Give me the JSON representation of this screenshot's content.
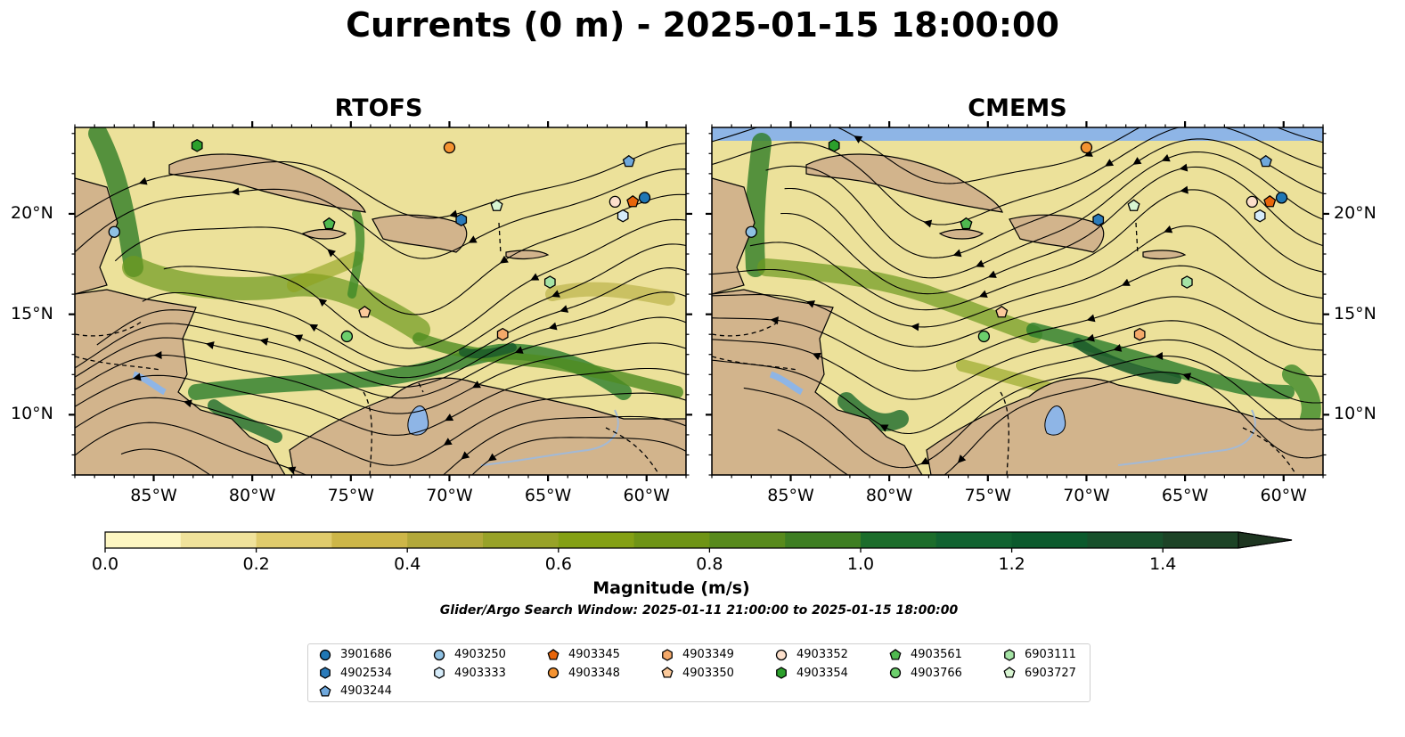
{
  "title": "Currents (0 m) - 2025-01-15 18:00:00",
  "panels": [
    {
      "title": "RTOFS"
    },
    {
      "title": "CMEMS"
    }
  ],
  "colorbar": {
    "label": "Magnitude (m/s)",
    "ticks": [
      "0.0",
      "0.2",
      "0.4",
      "0.6",
      "0.8",
      "1.0",
      "1.2",
      "1.4"
    ],
    "range": [
      0.0,
      1.5
    ],
    "extend": "max",
    "colors": [
      "#fdf6c2",
      "#f0e29b",
      "#e0cb6c",
      "#cdb648",
      "#b2a83a",
      "#98a228",
      "#84a014",
      "#6f9416",
      "#588a1c",
      "#3e7e22",
      "#1c6d2b",
      "#116331",
      "#0c5a2d",
      "#17502b",
      "#1c4326",
      "#1d3520"
    ]
  },
  "search_window": "Glider/Argo Search Window: 2025-01-11 21:00:00 to 2025-01-15 18:00:00",
  "chart_data": [
    {
      "type": "map",
      "title": "RTOFS",
      "variable": "surface current magnitude (m/s) with streamlines",
      "xlim": [
        -89,
        -58
      ],
      "ylim": [
        7,
        24.3
      ],
      "xticks": [
        "85°W",
        "80°W",
        "75°W",
        "70°W",
        "65°W",
        "60°W"
      ],
      "yticks": [
        "20°N",
        "15°N",
        "10°N"
      ],
      "floats": [
        {
          "id": "3901686",
          "lon": -60.1,
          "lat": 20.8
        },
        {
          "id": "4902534",
          "lon": -69.4,
          "lat": 19.7
        },
        {
          "id": "4903244",
          "lon": -60.9,
          "lat": 22.6
        },
        {
          "id": "4903250",
          "lon": -87.0,
          "lat": 19.1
        },
        {
          "id": "4903333",
          "lon": -61.2,
          "lat": 19.9
        },
        {
          "id": "4903345",
          "lon": -60.7,
          "lat": 20.6
        },
        {
          "id": "4903348",
          "lon": -70.0,
          "lat": 23.3
        },
        {
          "id": "4903349",
          "lon": -67.3,
          "lat": 14.0
        },
        {
          "id": "4903350",
          "lon": -74.3,
          "lat": 15.1
        },
        {
          "id": "4903352",
          "lon": -61.6,
          "lat": 20.6
        },
        {
          "id": "4903354",
          "lon": -82.8,
          "lat": 23.4
        },
        {
          "id": "4903561",
          "lon": -76.1,
          "lat": 19.5
        },
        {
          "id": "4903766",
          "lon": -75.2,
          "lat": 13.9
        },
        {
          "id": "6903111",
          "lon": -64.9,
          "lat": 16.6
        },
        {
          "id": "6903727",
          "lon": -67.6,
          "lat": 20.4
        }
      ]
    },
    {
      "type": "map",
      "title": "CMEMS",
      "variable": "surface current magnitude (m/s) with streamlines",
      "xlim": [
        -89,
        -58
      ],
      "ylim": [
        7,
        24.3
      ],
      "xticks": [
        "85°W",
        "80°W",
        "75°W",
        "70°W",
        "65°W",
        "60°W"
      ],
      "yticks": [
        "20°N",
        "15°N",
        "10°N"
      ],
      "floats": [
        {
          "id": "3901686",
          "lon": -60.1,
          "lat": 20.8
        },
        {
          "id": "4902534",
          "lon": -69.4,
          "lat": 19.7
        },
        {
          "id": "4903244",
          "lon": -60.9,
          "lat": 22.6
        },
        {
          "id": "4903250",
          "lon": -87.0,
          "lat": 19.1
        },
        {
          "id": "4903333",
          "lon": -61.2,
          "lat": 19.9
        },
        {
          "id": "4903345",
          "lon": -60.7,
          "lat": 20.6
        },
        {
          "id": "4903348",
          "lon": -70.0,
          "lat": 23.3
        },
        {
          "id": "4903349",
          "lon": -67.3,
          "lat": 14.0
        },
        {
          "id": "4903350",
          "lon": -74.3,
          "lat": 15.1
        },
        {
          "id": "4903352",
          "lon": -61.6,
          "lat": 20.6
        },
        {
          "id": "4903354",
          "lon": -82.8,
          "lat": 23.4
        },
        {
          "id": "4903561",
          "lon": -76.1,
          "lat": 19.5
        },
        {
          "id": "4903766",
          "lon": -75.2,
          "lat": 13.9
        },
        {
          "id": "6903111",
          "lon": -64.9,
          "lat": 16.6
        },
        {
          "id": "6903727",
          "lon": -67.6,
          "lat": 20.4
        }
      ]
    }
  ],
  "legend": [
    {
      "id": "3901686",
      "marker": "circle",
      "color": "#1f77b4"
    },
    {
      "id": "4902534",
      "marker": "hexagon",
      "color": "#2b7bba"
    },
    {
      "id": "4903244",
      "marker": "pentagon",
      "color": "#6fa8dc"
    },
    {
      "id": "4903250",
      "marker": "circle",
      "color": "#8fc1e3"
    },
    {
      "id": "4903333",
      "marker": "hexagon",
      "color": "#d6ecfa"
    },
    {
      "id": "4903345",
      "marker": "pentagon",
      "color": "#e8650a"
    },
    {
      "id": "4903348",
      "marker": "circle",
      "color": "#f59331"
    },
    {
      "id": "4903349",
      "marker": "hexagon",
      "color": "#f4a96a"
    },
    {
      "id": "4903350",
      "marker": "pentagon",
      "color": "#fbc99a"
    },
    {
      "id": "4903352",
      "marker": "circle",
      "color": "#fde0cc"
    },
    {
      "id": "4903354",
      "marker": "hexagon",
      "color": "#2ca02c"
    },
    {
      "id": "4903561",
      "marker": "pentagon",
      "color": "#4fb94f"
    },
    {
      "id": "4903766",
      "marker": "circle",
      "color": "#6ccf6c"
    },
    {
      "id": "6903111",
      "marker": "hexagon",
      "color": "#a5e3a5"
    },
    {
      "id": "6903727",
      "marker": "pentagon",
      "color": "#d8f5d2"
    }
  ],
  "colors": {
    "land": "#d2b48c",
    "lake": "#8eb5e6",
    "border": "#000000",
    "river": "#a2b9d6"
  }
}
